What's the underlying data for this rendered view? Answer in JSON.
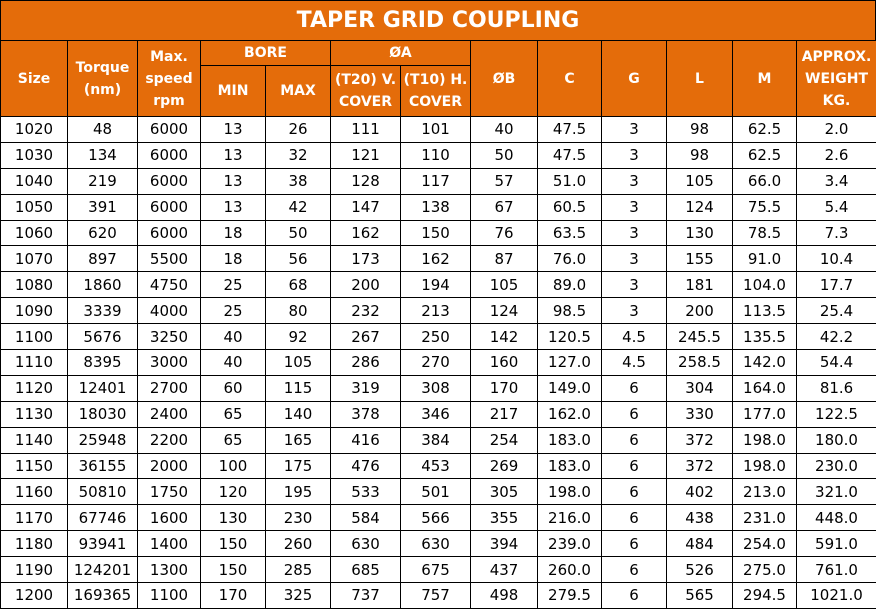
{
  "header": {
    "title": "TAPER GRID COUPLING"
  },
  "table": {
    "columns": [
      {
        "label": "Size"
      },
      {
        "label": "Torque (nm)"
      },
      {
        "label": "Max. speed rpm"
      },
      {
        "group": "BORE",
        "columns": [
          "MIN",
          "MAX"
        ]
      },
      {
        "group": "ØA",
        "columns": [
          "(T20) V. COVER",
          "(T10) H. COVER"
        ]
      },
      {
        "label": "ØB"
      },
      {
        "label": "C"
      },
      {
        "label": "G"
      },
      {
        "label": "L"
      },
      {
        "label": "M"
      },
      {
        "label": "APPROX. WEIGHT KG."
      }
    ],
    "rows": [
      [
        "1020",
        "48",
        "6000",
        "13",
        "26",
        "111",
        "101",
        "40",
        "47.5",
        "3",
        "98",
        "62.5",
        "2.0"
      ],
      [
        "1030",
        "134",
        "6000",
        "13",
        "32",
        "121",
        "110",
        "50",
        "47.5",
        "3",
        "98",
        "62.5",
        "2.6"
      ],
      [
        "1040",
        "219",
        "6000",
        "13",
        "38",
        "128",
        "117",
        "57",
        "51.0",
        "3",
        "105",
        "66.0",
        "3.4"
      ],
      [
        "1050",
        "391",
        "6000",
        "13",
        "42",
        "147",
        "138",
        "67",
        "60.5",
        "3",
        "124",
        "75.5",
        "5.4"
      ],
      [
        "1060",
        "620",
        "6000",
        "18",
        "50",
        "162",
        "150",
        "76",
        "63.5",
        "3",
        "130",
        "78.5",
        "7.3"
      ],
      [
        "1070",
        "897",
        "5500",
        "18",
        "56",
        "173",
        "162",
        "87",
        "76.0",
        "3",
        "155",
        "91.0",
        "10.4"
      ],
      [
        "1080",
        "1860",
        "4750",
        "25",
        "68",
        "200",
        "194",
        "105",
        "89.0",
        "3",
        "181",
        "104.0",
        "17.7"
      ],
      [
        "1090",
        "3339",
        "4000",
        "25",
        "80",
        "232",
        "213",
        "124",
        "98.5",
        "3",
        "200",
        "113.5",
        "25.4"
      ],
      [
        "1100",
        "5676",
        "3250",
        "40",
        "92",
        "267",
        "250",
        "142",
        "120.5",
        "4.5",
        "245.5",
        "135.5",
        "42.2"
      ],
      [
        "1110",
        "8395",
        "3000",
        "40",
        "105",
        "286",
        "270",
        "160",
        "127.0",
        "4.5",
        "258.5",
        "142.0",
        "54.4"
      ],
      [
        "1120",
        "12401",
        "2700",
        "60",
        "115",
        "319",
        "308",
        "170",
        "149.0",
        "6",
        "304",
        "164.0",
        "81.6"
      ],
      [
        "1130",
        "18030",
        "2400",
        "65",
        "140",
        "378",
        "346",
        "217",
        "162.0",
        "6",
        "330",
        "177.0",
        "122.5"
      ],
      [
        "1140",
        "25948",
        "2200",
        "65",
        "165",
        "416",
        "384",
        "254",
        "183.0",
        "6",
        "372",
        "198.0",
        "180.0"
      ],
      [
        "1150",
        "36155",
        "2000",
        "100",
        "175",
        "476",
        "453",
        "269",
        "183.0",
        "6",
        "372",
        "198.0",
        "230.0"
      ],
      [
        "1160",
        "50810",
        "1750",
        "120",
        "195",
        "533",
        "501",
        "305",
        "198.0",
        "6",
        "402",
        "213.0",
        "321.0"
      ],
      [
        "1170",
        "67746",
        "1600",
        "130",
        "230",
        "584",
        "566",
        "355",
        "216.0",
        "6",
        "438",
        "231.0",
        "448.0"
      ],
      [
        "1180",
        "93941",
        "1400",
        "150",
        "260",
        "630",
        "630",
        "394",
        "239.0",
        "6",
        "484",
        "254.0",
        "591.0"
      ],
      [
        "1190",
        "124201",
        "1300",
        "150",
        "285",
        "685",
        "675",
        "437",
        "260.0",
        "6",
        "526",
        "275.0",
        "761.0"
      ],
      [
        "1200",
        "169365",
        "1100",
        "170",
        "325",
        "737",
        "757",
        "498",
        "279.5",
        "6",
        "565",
        "294.5",
        "1021.0"
      ]
    ]
  }
}
